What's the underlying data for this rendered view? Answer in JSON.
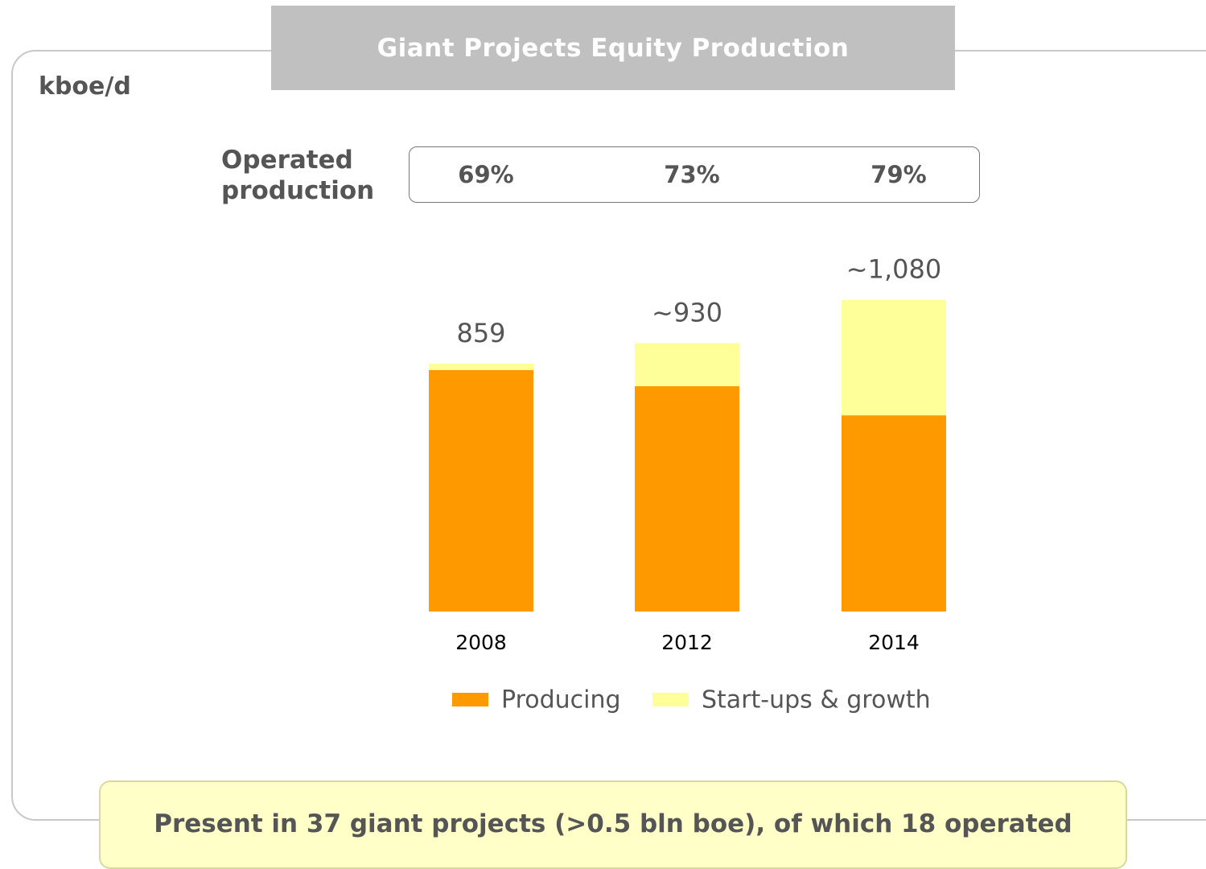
{
  "chart_data": {
    "type": "bar",
    "stacked": true,
    "title": "Giant Projects Equity Production",
    "unit_label": "kboe/d",
    "categories": [
      "2008",
      "2012",
      "2014"
    ],
    "series": [
      {
        "name": "Producing",
        "color": "#ff9900",
        "values": [
          837,
          781,
          680
        ]
      },
      {
        "name": "Start-ups & growth",
        "color": "#ffff99",
        "values": [
          22,
          149,
          400
        ]
      }
    ],
    "totals": [
      859,
      930,
      1080
    ],
    "total_labels": [
      "859",
      "~930",
      "~1,080"
    ],
    "operated_production": {
      "label": "Operated production",
      "values": [
        69,
        73,
        79
      ],
      "value_labels": [
        "69%",
        "73%",
        "79%"
      ]
    },
    "footnote": "Present in 37 giant projects (>0.5 bln boe), of which 18 operated"
  }
}
